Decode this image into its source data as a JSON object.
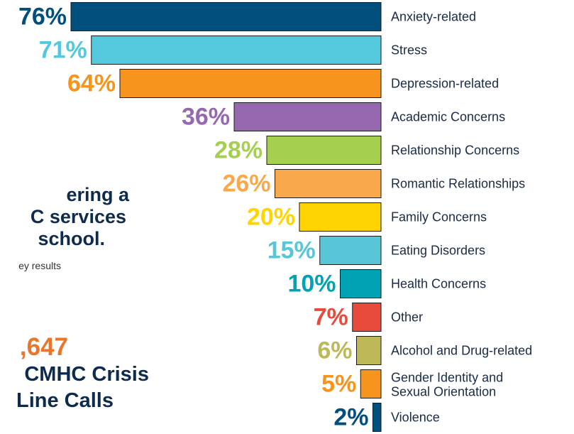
{
  "left_text": {
    "line1": "ering a",
    "line2": "C services",
    "line3": " school.",
    "line4": "ey results",
    "stat_number": ",647",
    "stat_line1": "CMHC Crisis",
    "stat_line2": "Line Calls"
  },
  "chart_data": {
    "type": "bar",
    "orientation": "horizontal",
    "value_suffix": "%",
    "categories": [
      "Anxiety-related",
      "Stress",
      "Depression-related",
      "Academic Concerns",
      "Relationship Concerns",
      "Romantic Relationships",
      "Family Concerns",
      "Eating Disorders",
      "Health Concerns",
      "Other",
      "Alcohol and Drug-related",
      [
        "Gender Identity and",
        "Sexual Orientation"
      ],
      "Violence"
    ],
    "values": [
      76,
      71,
      64,
      36,
      28,
      26,
      20,
      15,
      10,
      7,
      6,
      5,
      2
    ],
    "colors": [
      "#004f7c",
      "#54c8dc",
      "#f7941e",
      "#9668b0",
      "#a4cf4f",
      "#f9a94b",
      "#ffd400",
      "#59c6d8",
      "#00a3b4",
      "#e84a3c",
      "#bdb958",
      "#f7941e",
      "#004f7c"
    ],
    "label_colors": [
      "#004f7c",
      "#54c8dc",
      "#f7941e",
      "#9668b0",
      "#a4cf4f",
      "#f9a94b",
      "#ffd400",
      "#59c6d8",
      "#00a3b4",
      "#e84a3c",
      "#bdb958",
      "#f7941e",
      "#004f7c"
    ]
  }
}
